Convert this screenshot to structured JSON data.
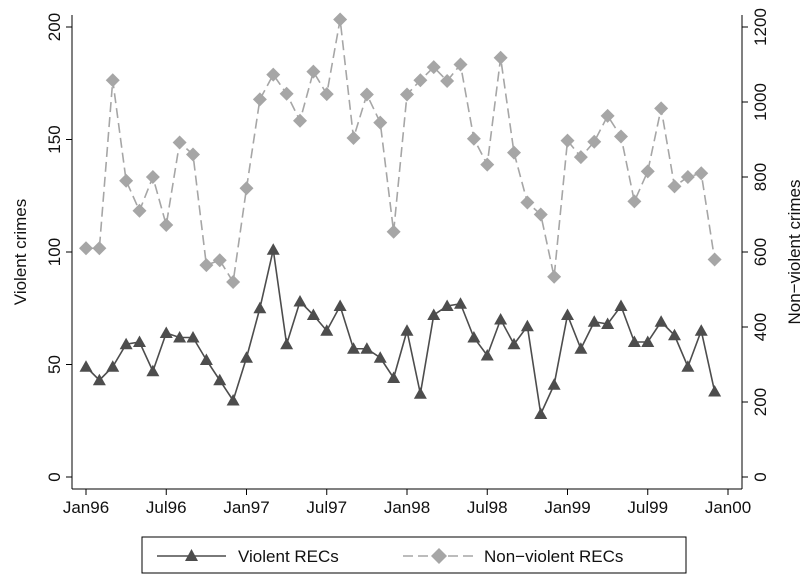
{
  "chart_data": {
    "type": "line",
    "x": [
      "1996-01",
      "1996-02",
      "1996-03",
      "1996-04",
      "1996-05",
      "1996-06",
      "1996-07",
      "1996-08",
      "1996-09",
      "1996-10",
      "1996-11",
      "1996-12",
      "1997-01",
      "1997-02",
      "1997-03",
      "1997-04",
      "1997-05",
      "1997-06",
      "1997-07",
      "1997-08",
      "1997-09",
      "1997-10",
      "1997-11",
      "1997-12",
      "1998-01",
      "1998-02",
      "1998-03",
      "1998-04",
      "1998-05",
      "1998-06",
      "1998-07",
      "1998-08",
      "1998-09",
      "1998-10",
      "1998-11",
      "1998-12",
      "1999-01",
      "1999-02",
      "1999-03",
      "1999-04",
      "1999-05",
      "1999-06",
      "1999-07",
      "1999-08",
      "1999-09",
      "1999-10",
      "1999-11",
      "1999-12"
    ],
    "x_ticks": [
      "Jan96",
      "Jul96",
      "Jan97",
      "Jul97",
      "Jan98",
      "Jul98",
      "Jan99",
      "Jul99",
      "Jan00"
    ],
    "y_left": {
      "label": "Violent crimes",
      "ticks": [
        0,
        50,
        100,
        150,
        200
      ],
      "ylim": [
        0,
        200
      ]
    },
    "y_right": {
      "label": "Non−violent crimes",
      "ticks": [
        0,
        200,
        400,
        600,
        800,
        1000,
        1200
      ],
      "ylim": [
        0,
        1200
      ]
    },
    "grid": false,
    "legend_position": "bottom",
    "series": [
      {
        "name": "Violent RECs",
        "axis": "left",
        "color": "#4d4d4d",
        "marker": "triangle",
        "line": "solid",
        "values": [
          49,
          43,
          49,
          59,
          60,
          47,
          64,
          62,
          62,
          52,
          43,
          34,
          53,
          75,
          101,
          59,
          78,
          72,
          65,
          76,
          57,
          57,
          53,
          44,
          65,
          37,
          72,
          76,
          77,
          62,
          54,
          70,
          59,
          67,
          28,
          41,
          72,
          57,
          69,
          68,
          76,
          60,
          60,
          69,
          63,
          49,
          65,
          38
        ]
      },
      {
        "name": "Non−violent RECs",
        "axis": "right",
        "color": "#a6a6a6",
        "marker": "diamond",
        "line": "dashed",
        "values": [
          610,
          610,
          1058,
          790,
          710,
          800,
          672,
          892,
          860,
          565,
          578,
          520,
          770,
          1007,
          1073,
          1022,
          950,
          1081,
          1021,
          1220,
          904,
          1020,
          945,
          654,
          1020,
          1058,
          1093,
          1056,
          1100,
          902,
          833,
          1118,
          865,
          732,
          700,
          534,
          897,
          853,
          894,
          963,
          908,
          735,
          815,
          983,
          775,
          800,
          810,
          580
        ]
      }
    ]
  }
}
